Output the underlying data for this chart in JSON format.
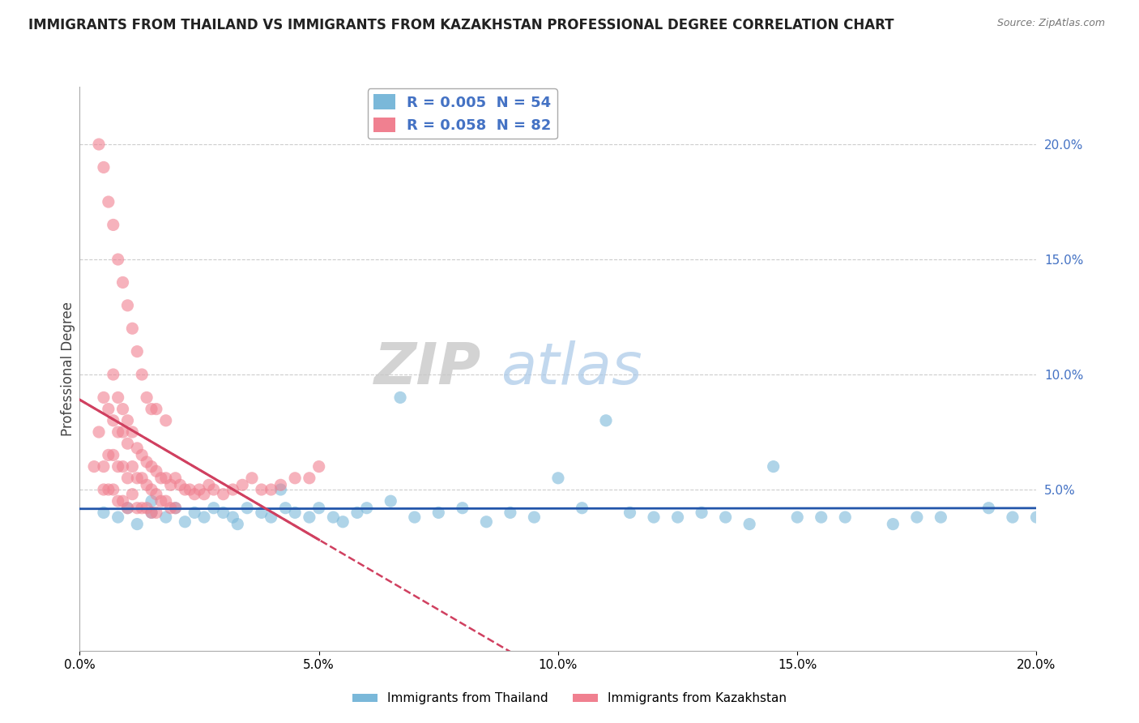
{
  "title": "IMMIGRANTS FROM THAILAND VS IMMIGRANTS FROM KAZAKHSTAN PROFESSIONAL DEGREE CORRELATION CHART",
  "source": "Source: ZipAtlas.com",
  "ylabel": "Professional Degree",
  "xlim": [
    0.0,
    0.2
  ],
  "ylim": [
    -0.02,
    0.225
  ],
  "thailand_color": "#7ab8d9",
  "kazakhstan_color": "#f08090",
  "trend_thailand_color": "#2255aa",
  "trend_kazakhstan_color": "#d04060",
  "thailand_R": 0.005,
  "thailand_N": 54,
  "kazakhstan_R": 0.058,
  "kazakhstan_N": 82,
  "legend_label_thailand": "Immigrants from Thailand",
  "legend_label_kazakhstan": "Immigrants from Kazakhstan",
  "watermark_text": "ZIP",
  "watermark_text2": "atlas",
  "thailand_x": [
    0.005,
    0.008,
    0.01,
    0.012,
    0.015,
    0.015,
    0.018,
    0.02,
    0.022,
    0.024,
    0.026,
    0.028,
    0.03,
    0.032,
    0.035,
    0.038,
    0.04,
    0.043,
    0.045,
    0.048,
    0.05,
    0.053,
    0.055,
    0.058,
    0.06,
    0.065,
    0.07,
    0.075,
    0.08,
    0.085,
    0.09,
    0.095,
    0.1,
    0.105,
    0.11,
    0.115,
    0.12,
    0.125,
    0.13,
    0.135,
    0.14,
    0.145,
    0.15,
    0.155,
    0.16,
    0.17,
    0.175,
    0.18,
    0.19,
    0.195,
    0.2,
    0.033,
    0.042,
    0.067
  ],
  "thailand_y": [
    0.04,
    0.038,
    0.042,
    0.035,
    0.04,
    0.045,
    0.038,
    0.042,
    0.036,
    0.04,
    0.038,
    0.042,
    0.04,
    0.038,
    0.042,
    0.04,
    0.038,
    0.042,
    0.04,
    0.038,
    0.042,
    0.038,
    0.036,
    0.04,
    0.042,
    0.045,
    0.038,
    0.04,
    0.042,
    0.036,
    0.04,
    0.038,
    0.055,
    0.042,
    0.08,
    0.04,
    0.038,
    0.038,
    0.04,
    0.038,
    0.035,
    0.06,
    0.038,
    0.038,
    0.038,
    0.035,
    0.038,
    0.038,
    0.042,
    0.038,
    0.038,
    0.035,
    0.05,
    0.09
  ],
  "kazakhstan_x": [
    0.003,
    0.004,
    0.005,
    0.005,
    0.005,
    0.006,
    0.006,
    0.006,
    0.007,
    0.007,
    0.007,
    0.007,
    0.008,
    0.008,
    0.008,
    0.008,
    0.009,
    0.009,
    0.009,
    0.009,
    0.01,
    0.01,
    0.01,
    0.01,
    0.011,
    0.011,
    0.011,
    0.012,
    0.012,
    0.012,
    0.013,
    0.013,
    0.013,
    0.014,
    0.014,
    0.014,
    0.015,
    0.015,
    0.015,
    0.016,
    0.016,
    0.016,
    0.017,
    0.017,
    0.018,
    0.018,
    0.019,
    0.019,
    0.02,
    0.02,
    0.021,
    0.022,
    0.023,
    0.024,
    0.025,
    0.026,
    0.027,
    0.028,
    0.03,
    0.032,
    0.034,
    0.036,
    0.038,
    0.04,
    0.042,
    0.045,
    0.048,
    0.05,
    0.004,
    0.005,
    0.006,
    0.007,
    0.008,
    0.009,
    0.01,
    0.011,
    0.012,
    0.013,
    0.014,
    0.015,
    0.016,
    0.018
  ],
  "kazakhstan_y": [
    0.06,
    0.075,
    0.09,
    0.06,
    0.05,
    0.085,
    0.065,
    0.05,
    0.1,
    0.08,
    0.065,
    0.05,
    0.09,
    0.075,
    0.06,
    0.045,
    0.085,
    0.075,
    0.06,
    0.045,
    0.08,
    0.07,
    0.055,
    0.042,
    0.075,
    0.06,
    0.048,
    0.068,
    0.055,
    0.042,
    0.065,
    0.055,
    0.042,
    0.062,
    0.052,
    0.042,
    0.06,
    0.05,
    0.04,
    0.058,
    0.048,
    0.04,
    0.055,
    0.045,
    0.055,
    0.045,
    0.052,
    0.042,
    0.055,
    0.042,
    0.052,
    0.05,
    0.05,
    0.048,
    0.05,
    0.048,
    0.052,
    0.05,
    0.048,
    0.05,
    0.052,
    0.055,
    0.05,
    0.05,
    0.052,
    0.055,
    0.055,
    0.06,
    0.2,
    0.19,
    0.175,
    0.165,
    0.15,
    0.14,
    0.13,
    0.12,
    0.11,
    0.1,
    0.09,
    0.085,
    0.085,
    0.08
  ]
}
